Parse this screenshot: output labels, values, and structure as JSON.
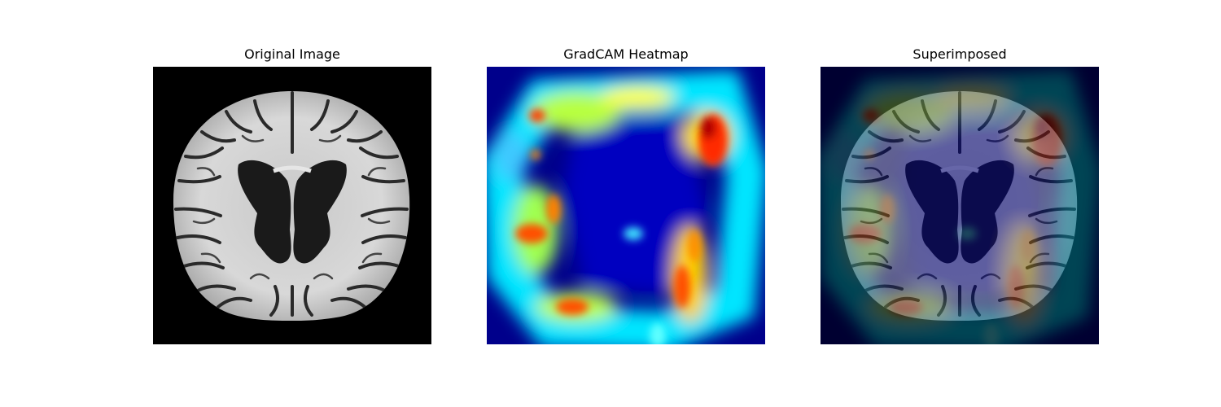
{
  "figure": {
    "panels": [
      {
        "title": "Original Image",
        "image": "brain-mri-axial-slice"
      },
      {
        "title": "GradCAM Heatmap",
        "image": "gradcam-jet-heatmap"
      },
      {
        "title": "Superimposed",
        "image": "heatmap-overlay-on-mri"
      }
    ]
  }
}
